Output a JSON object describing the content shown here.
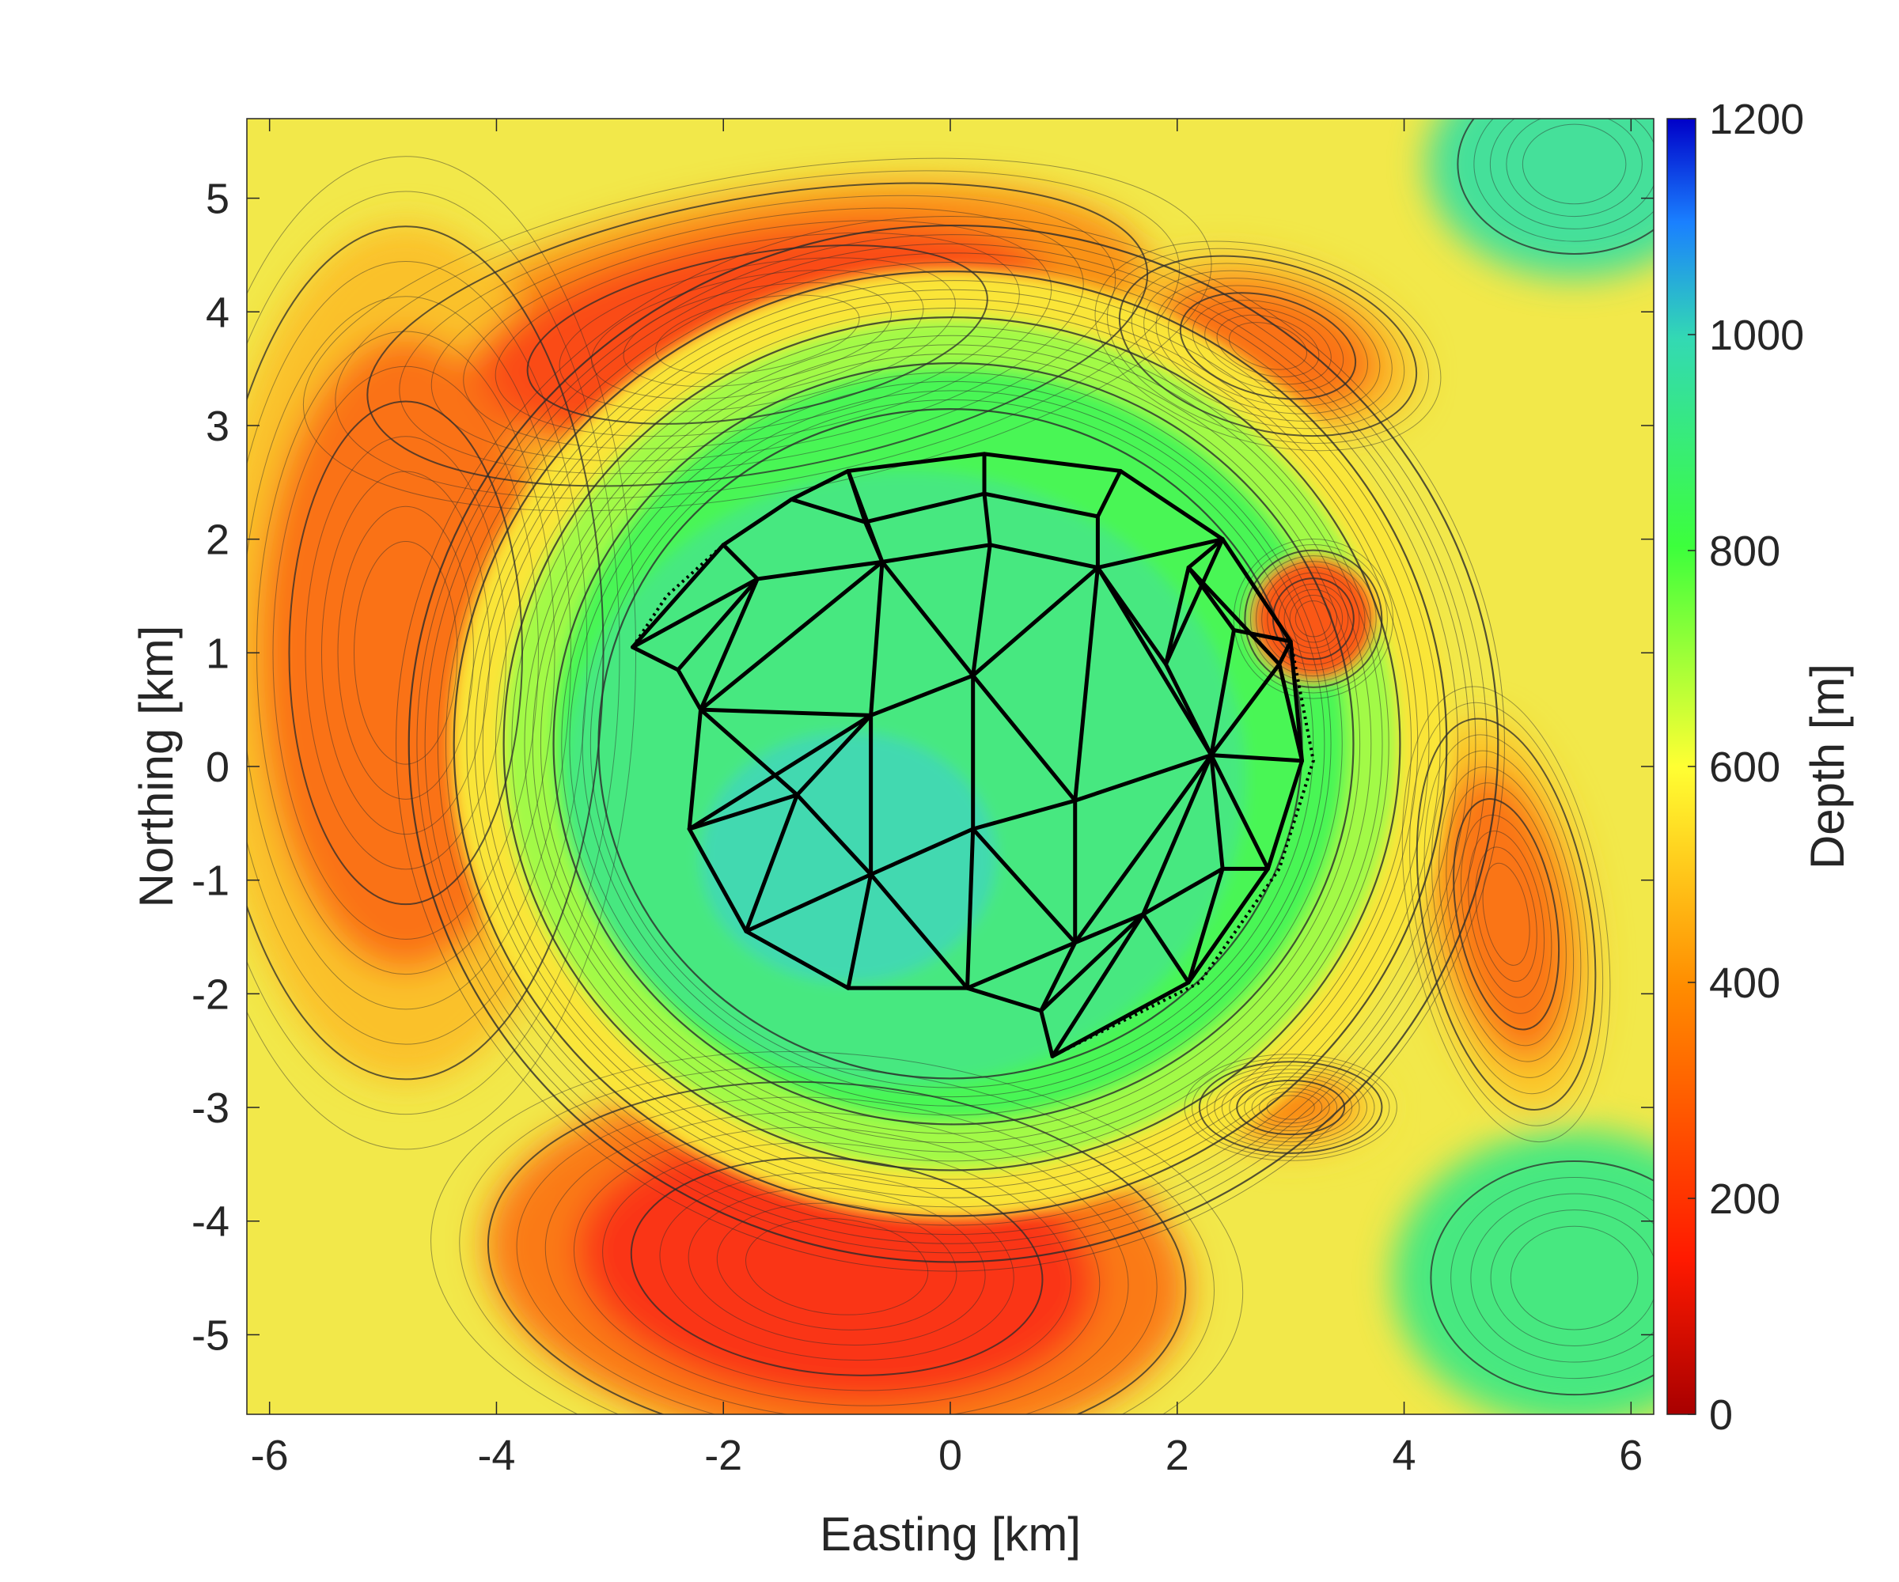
{
  "chart_data": {
    "type": "heatmap",
    "subtype": "bathymetric contour map with triangulated mesh overlay",
    "title": "",
    "xlabel": "Easting [km]",
    "ylabel": "Northing [km]",
    "xlim": [
      -6.2,
      6.2
    ],
    "ylim": [
      -5.7,
      5.7
    ],
    "xticks": [
      -6,
      -4,
      -2,
      0,
      2,
      4,
      6
    ],
    "yticks": [
      -5,
      -4,
      -3,
      -2,
      -1,
      0,
      1,
      2,
      3,
      4,
      5
    ],
    "colorbar": {
      "label": "Depth [m]",
      "range": [
        0,
        1200
      ],
      "ticks": [
        0,
        200,
        400,
        600,
        800,
        1000,
        1200
      ],
      "colormap": "jet (reversed: red = shallow, blue = deep)",
      "colors": [
        "#b30000",
        "#ff1a00",
        "#ff8000",
        "#ffff33",
        "#33ff33",
        "#33d9b3",
        "#0000cc"
      ]
    },
    "grid": false,
    "features": [
      {
        "name": "caldera-basin",
        "center": [
          0.0,
          0.2
        ],
        "radius_km": 3.2,
        "depth_m": 920
      },
      {
        "name": "north-shoal",
        "center": [
          -2.0,
          3.8
        ],
        "depth_m": 230
      },
      {
        "name": "west-shoal",
        "center": [
          -4.8,
          1.0
        ],
        "depth_m": 320
      },
      {
        "name": "south-shoal",
        "center": [
          -1.0,
          -4.4
        ],
        "depth_m": 170
      },
      {
        "name": "east-cone",
        "center": [
          3.2,
          1.3
        ],
        "depth_m": 260
      },
      {
        "name": "northeast-shoal",
        "center": [
          2.8,
          3.7
        ],
        "depth_m": 320
      },
      {
        "name": "east-shoal",
        "center": [
          4.9,
          -1.3
        ],
        "depth_m": 330
      },
      {
        "name": "southeast-knoll",
        "center": [
          3.0,
          -3.0
        ],
        "depth_m": 380
      },
      {
        "name": "northeast-deep",
        "center": [
          5.5,
          5.3
        ],
        "depth_m": 950
      },
      {
        "name": "southeast-deep",
        "center": [
          5.5,
          -4.5
        ],
        "depth_m": 900
      }
    ],
    "mesh": {
      "nodes": [
        [
          -2.8,
          1.05
        ],
        [
          -2.4,
          0.85
        ],
        [
          -2.0,
          1.95
        ],
        [
          -1.4,
          2.35
        ],
        [
          -0.9,
          2.6
        ],
        [
          0.3,
          2.75
        ],
        [
          1.5,
          2.6
        ],
        [
          2.4,
          2.0
        ],
        [
          3.0,
          1.1
        ],
        [
          3.1,
          0.05
        ],
        [
          2.8,
          -0.9
        ],
        [
          2.1,
          -1.9
        ],
        [
          0.9,
          -2.55
        ],
        [
          0.8,
          -2.15
        ],
        [
          0.15,
          -1.95
        ],
        [
          -0.9,
          -1.95
        ],
        [
          -1.8,
          -1.45
        ],
        [
          -2.3,
          -0.55
        ],
        [
          -2.2,
          0.5
        ],
        [
          -1.7,
          1.65
        ],
        [
          -0.6,
          1.8
        ],
        [
          -0.75,
          2.15
        ],
        [
          0.3,
          2.4
        ],
        [
          1.3,
          2.2
        ],
        [
          0.35,
          1.95
        ],
        [
          1.3,
          1.75
        ],
        [
          0.2,
          0.8
        ],
        [
          -0.7,
          0.45
        ],
        [
          -1.35,
          -0.25
        ],
        [
          -0.7,
          -0.95
        ],
        [
          0.2,
          -0.55
        ],
        [
          1.1,
          -0.3
        ],
        [
          2.3,
          0.1
        ],
        [
          1.1,
          -1.55
        ],
        [
          1.7,
          -1.3
        ],
        [
          2.4,
          -0.9
        ],
        [
          1.9,
          0.9
        ],
        [
          2.1,
          1.75
        ],
        [
          2.9,
          0.9
        ],
        [
          2.5,
          1.2
        ]
      ],
      "edges": [
        [
          0,
          2
        ],
        [
          2,
          3
        ],
        [
          3,
          4
        ],
        [
          4,
          5
        ],
        [
          5,
          6
        ],
        [
          6,
          7
        ],
        [
          7,
          8
        ],
        [
          8,
          9
        ],
        [
          9,
          10
        ],
        [
          10,
          11
        ],
        [
          11,
          12
        ],
        [
          12,
          13
        ],
        [
          13,
          14
        ],
        [
          14,
          15
        ],
        [
          15,
          16
        ],
        [
          16,
          17
        ],
        [
          17,
          18
        ],
        [
          0,
          1
        ],
        [
          1,
          18
        ],
        [
          1,
          19
        ],
        [
          0,
          19
        ],
        [
          2,
          19
        ],
        [
          19,
          20
        ],
        [
          3,
          21
        ],
        [
          4,
          21
        ],
        [
          21,
          20
        ],
        [
          5,
          22
        ],
        [
          21,
          22
        ],
        [
          22,
          23
        ],
        [
          6,
          23
        ],
        [
          4,
          20
        ],
        [
          18,
          19
        ],
        [
          18,
          20
        ],
        [
          20,
          24
        ],
        [
          22,
          24
        ],
        [
          24,
          25
        ],
        [
          23,
          25
        ],
        [
          7,
          25
        ],
        [
          20,
          26
        ],
        [
          24,
          26
        ],
        [
          25,
          26
        ],
        [
          20,
          27
        ],
        [
          26,
          27
        ],
        [
          18,
          27
        ],
        [
          17,
          27
        ],
        [
          18,
          28
        ],
        [
          17,
          28
        ],
        [
          27,
          28
        ],
        [
          16,
          28
        ],
        [
          28,
          29
        ],
        [
          16,
          29
        ],
        [
          15,
          29
        ],
        [
          27,
          29
        ],
        [
          29,
          30
        ],
        [
          26,
          30
        ],
        [
          30,
          31
        ],
        [
          26,
          31
        ],
        [
          25,
          31
        ],
        [
          29,
          14
        ],
        [
          30,
          14
        ],
        [
          14,
          33
        ],
        [
          30,
          33
        ],
        [
          31,
          33
        ],
        [
          13,
          33
        ],
        [
          31,
          32
        ],
        [
          25,
          32
        ],
        [
          32,
          33
        ],
        [
          32,
          34
        ],
        [
          33,
          34
        ],
        [
          34,
          35
        ],
        [
          32,
          35
        ],
        [
          11,
          35
        ],
        [
          10,
          35
        ],
        [
          9,
          32
        ],
        [
          10,
          32
        ],
        [
          25,
          36
        ],
        [
          7,
          36
        ],
        [
          36,
          32
        ],
        [
          36,
          37
        ],
        [
          7,
          37
        ],
        [
          37,
          38
        ],
        [
          8,
          38
        ],
        [
          38,
          9
        ],
        [
          37,
          39
        ],
        [
          39,
          32
        ],
        [
          38,
          32
        ],
        [
          8,
          39
        ],
        [
          12,
          34
        ],
        [
          11,
          34
        ],
        [
          13,
          34
        ]
      ],
      "boundary_dotted": [
        [
          -2.8,
          1.05
        ],
        [
          -2.5,
          1.5
        ],
        [
          -2.0,
          1.95
        ],
        [
          -1.4,
          2.35
        ],
        [
          -0.9,
          2.6
        ],
        [
          0.3,
          2.75
        ],
        [
          1.5,
          2.6
        ],
        [
          2.4,
          2.0
        ],
        [
          3.0,
          1.1
        ],
        [
          3.2,
          0.05
        ],
        [
          2.9,
          -0.9
        ],
        [
          2.2,
          -1.9
        ],
        [
          0.9,
          -2.55
        ]
      ]
    }
  }
}
